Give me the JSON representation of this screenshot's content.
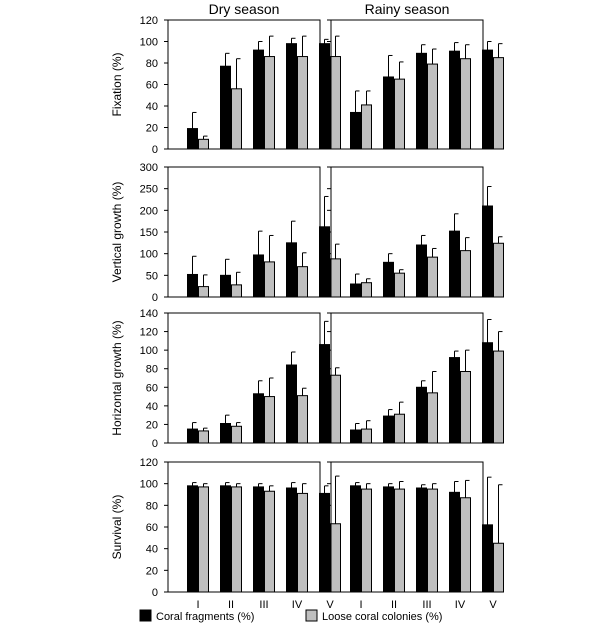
{
  "chart_data": {
    "type": "bar",
    "columns": [
      "Dry season",
      "Rainy season"
    ],
    "categories": [
      "I",
      "II",
      "III",
      "IV",
      "V"
    ],
    "legend": [
      {
        "name": "Coral fragments (%)",
        "color": "#000000"
      },
      {
        "name": "Loose coral colonies (%)",
        "color": "#bfbfbf"
      }
    ],
    "panels": [
      {
        "ylabel": "Fixation (%)",
        "ylim": [
          0,
          120
        ],
        "yticks": [
          0,
          20,
          40,
          60,
          80,
          100,
          120
        ],
        "dry": {
          "fragments": {
            "values": [
              19,
              77,
              92,
              98,
              98
            ],
            "errors": [
              15,
              12,
              8,
              5,
              4
            ]
          },
          "colonies": {
            "values": [
              9,
              56,
              86,
              86,
              86
            ],
            "errors": [
              3,
              28,
              19,
              19,
              19
            ]
          }
        },
        "rainy": {
          "fragments": {
            "values": [
              34,
              67,
              89,
              91,
              92
            ],
            "errors": [
              20,
              20,
              8,
              8,
              8
            ]
          },
          "colonies": {
            "values": [
              41,
              65,
              79,
              84,
              85
            ],
            "errors": [
              13,
              16,
              14,
              13,
              13
            ]
          }
        }
      },
      {
        "ylabel": "Vertical growth (%)",
        "ylim": [
          0,
          300
        ],
        "yticks": [
          0,
          50,
          100,
          150,
          200,
          250,
          300
        ],
        "dry": {
          "fragments": {
            "values": [
              52,
              50,
              97,
              125,
              162
            ],
            "errors": [
              42,
              37,
              55,
              50,
              70
            ]
          },
          "colonies": {
            "values": [
              24,
              28,
              81,
              70,
              88
            ],
            "errors": [
              27,
              29,
              61,
              32,
              34
            ]
          }
        },
        "rainy": {
          "fragments": {
            "values": [
              30,
              80,
              120,
              152,
              210
            ],
            "errors": [
              23,
              20,
              22,
              40,
              45
            ]
          },
          "colonies": {
            "values": [
              33,
              55,
              92,
              107,
              124
            ],
            "errors": [
              9,
              8,
              20,
              30,
              15
            ]
          }
        }
      },
      {
        "ylabel": "Horizontal growth (%)",
        "ylim": [
          0,
          140
        ],
        "yticks": [
          0,
          20,
          40,
          60,
          80,
          100,
          120,
          140
        ],
        "dry": {
          "fragments": {
            "values": [
              15,
              21,
              53,
              84,
              106
            ],
            "errors": [
              7,
              9,
              14,
              14,
              25
            ]
          },
          "colonies": {
            "values": [
              13,
              18,
              50,
              51,
              73
            ],
            "errors": [
              3,
              4,
              20,
              8,
              8
            ]
          }
        },
        "rainy": {
          "fragments": {
            "values": [
              14,
              29,
              60,
              92,
              108
            ],
            "errors": [
              7,
              7,
              7,
              7,
              25
            ]
          },
          "colonies": {
            "values": [
              15,
              31,
              54,
              77,
              99
            ],
            "errors": [
              9,
              13,
              23,
              23,
              21
            ]
          }
        }
      },
      {
        "ylabel": "Survival (%)",
        "ylim": [
          0,
          120
        ],
        "yticks": [
          0,
          20,
          40,
          60,
          80,
          100,
          120
        ],
        "dry": {
          "fragments": {
            "values": [
              98,
              98,
              97,
              96,
              91
            ],
            "errors": [
              3,
              3,
              3,
              5,
              7
            ]
          },
          "colonies": {
            "values": [
              97,
              97,
              93,
              91,
              63
            ],
            "errors": [
              3,
              3,
              5,
              9,
              44
            ]
          }
        },
        "rainy": {
          "fragments": {
            "values": [
              98,
              97,
              96,
              92,
              62
            ],
            "errors": [
              3,
              3,
              3,
              10,
              44
            ]
          },
          "colonies": {
            "values": [
              95,
              95,
              95,
              87,
              45
            ],
            "errors": [
              5,
              7,
              5,
              16,
              54
            ]
          }
        }
      }
    ]
  }
}
